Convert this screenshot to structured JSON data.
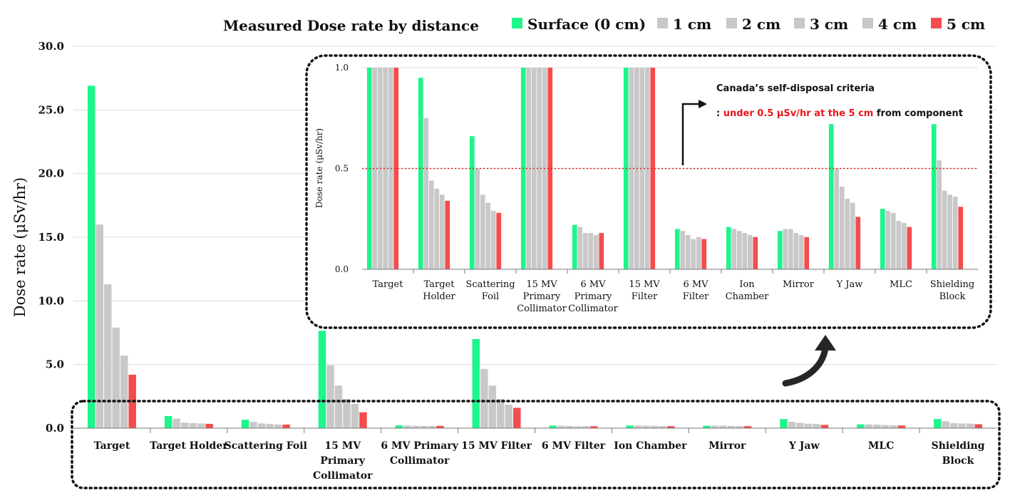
{
  "chart_data": [
    {
      "type": "bar",
      "title": "Measured Dose rate by distance",
      "ylabel": "Dose rate (μSv/hr)",
      "ylim": [
        0,
        30
      ],
      "yticks": [
        "0.0",
        "5.0",
        "10.0",
        "15.0",
        "20.0",
        "25.0",
        "30.0"
      ],
      "grid": true,
      "legend_position": "top",
      "categories": [
        [
          "Target"
        ],
        [
          "Target Holder"
        ],
        [
          "Scattering Foil"
        ],
        [
          "15 MV",
          "Primary",
          "Collimator"
        ],
        [
          "6 MV Primary",
          "Collimator"
        ],
        [
          "15 MV Filter"
        ],
        [
          "6 MV Filter"
        ],
        [
          "Ion Chamber"
        ],
        [
          "Mirror"
        ],
        [
          "Y Jaw"
        ],
        [
          "MLC"
        ],
        [
          "Shielding",
          "Block"
        ]
      ],
      "series": [
        {
          "name": "Surface (0 cm)",
          "color": "#1ef58b",
          "values": [
            26.9,
            0.95,
            0.66,
            7.65,
            0.22,
            7.0,
            0.2,
            0.21,
            0.19,
            0.72,
            0.3,
            0.72
          ]
        },
        {
          "name": "1 cm",
          "color": "#c8c8c8",
          "values": [
            16.0,
            0.75,
            0.5,
            4.95,
            0.21,
            4.65,
            0.19,
            0.2,
            0.2,
            0.5,
            0.29,
            0.54
          ]
        },
        {
          "name": "2 cm",
          "color": "#c8c8c8",
          "values": [
            11.3,
            0.44,
            0.37,
            3.35,
            0.18,
            3.35,
            0.17,
            0.19,
            0.2,
            0.41,
            0.28,
            0.39
          ]
        },
        {
          "name": "3 cm",
          "color": "#c8c8c8",
          "values": [
            7.9,
            0.4,
            0.33,
            2.3,
            0.18,
            2.3,
            0.15,
            0.18,
            0.18,
            0.35,
            0.24,
            0.37
          ]
        },
        {
          "name": "4 cm",
          "color": "#c8c8c8",
          "values": [
            5.7,
            0.37,
            0.29,
            1.9,
            0.17,
            1.85,
            0.16,
            0.17,
            0.17,
            0.33,
            0.23,
            0.36
          ]
        },
        {
          "name": "5 cm",
          "color": "#f44c4c",
          "values": [
            4.2,
            0.34,
            0.28,
            1.25,
            0.18,
            1.6,
            0.15,
            0.16,
            0.16,
            0.26,
            0.21,
            0.31
          ]
        }
      ]
    },
    {
      "type": "bar",
      "ylabel": "Dose rate (μSv/hr)",
      "ylim": [
        0,
        1.0
      ],
      "yticks": [
        "0.0",
        "0.5",
        "1.0"
      ],
      "categories": [
        [
          "Target"
        ],
        [
          "Target",
          "Holder"
        ],
        [
          "Scattering",
          "Foil"
        ],
        [
          "15 MV",
          "Primary",
          "Collimator"
        ],
        [
          "6 MV",
          "Primary",
          "Collimator"
        ],
        [
          "15 MV",
          "Filter"
        ],
        [
          "6 MV",
          "Filter"
        ],
        [
          "Ion",
          "Chamber"
        ],
        [
          "Mirror"
        ],
        [
          "Y Jaw"
        ],
        [
          "MLC"
        ],
        [
          "Shielding",
          "Block"
        ]
      ],
      "reference_line": {
        "value": 0.5,
        "color": "#e8161b"
      },
      "annotation": {
        "title": "Canada’s self-disposal criteria",
        "prefix": ": ",
        "highlight": "under 0.5 μSv/hr at the 5 cm",
        "suffix": " from component"
      }
    }
  ]
}
